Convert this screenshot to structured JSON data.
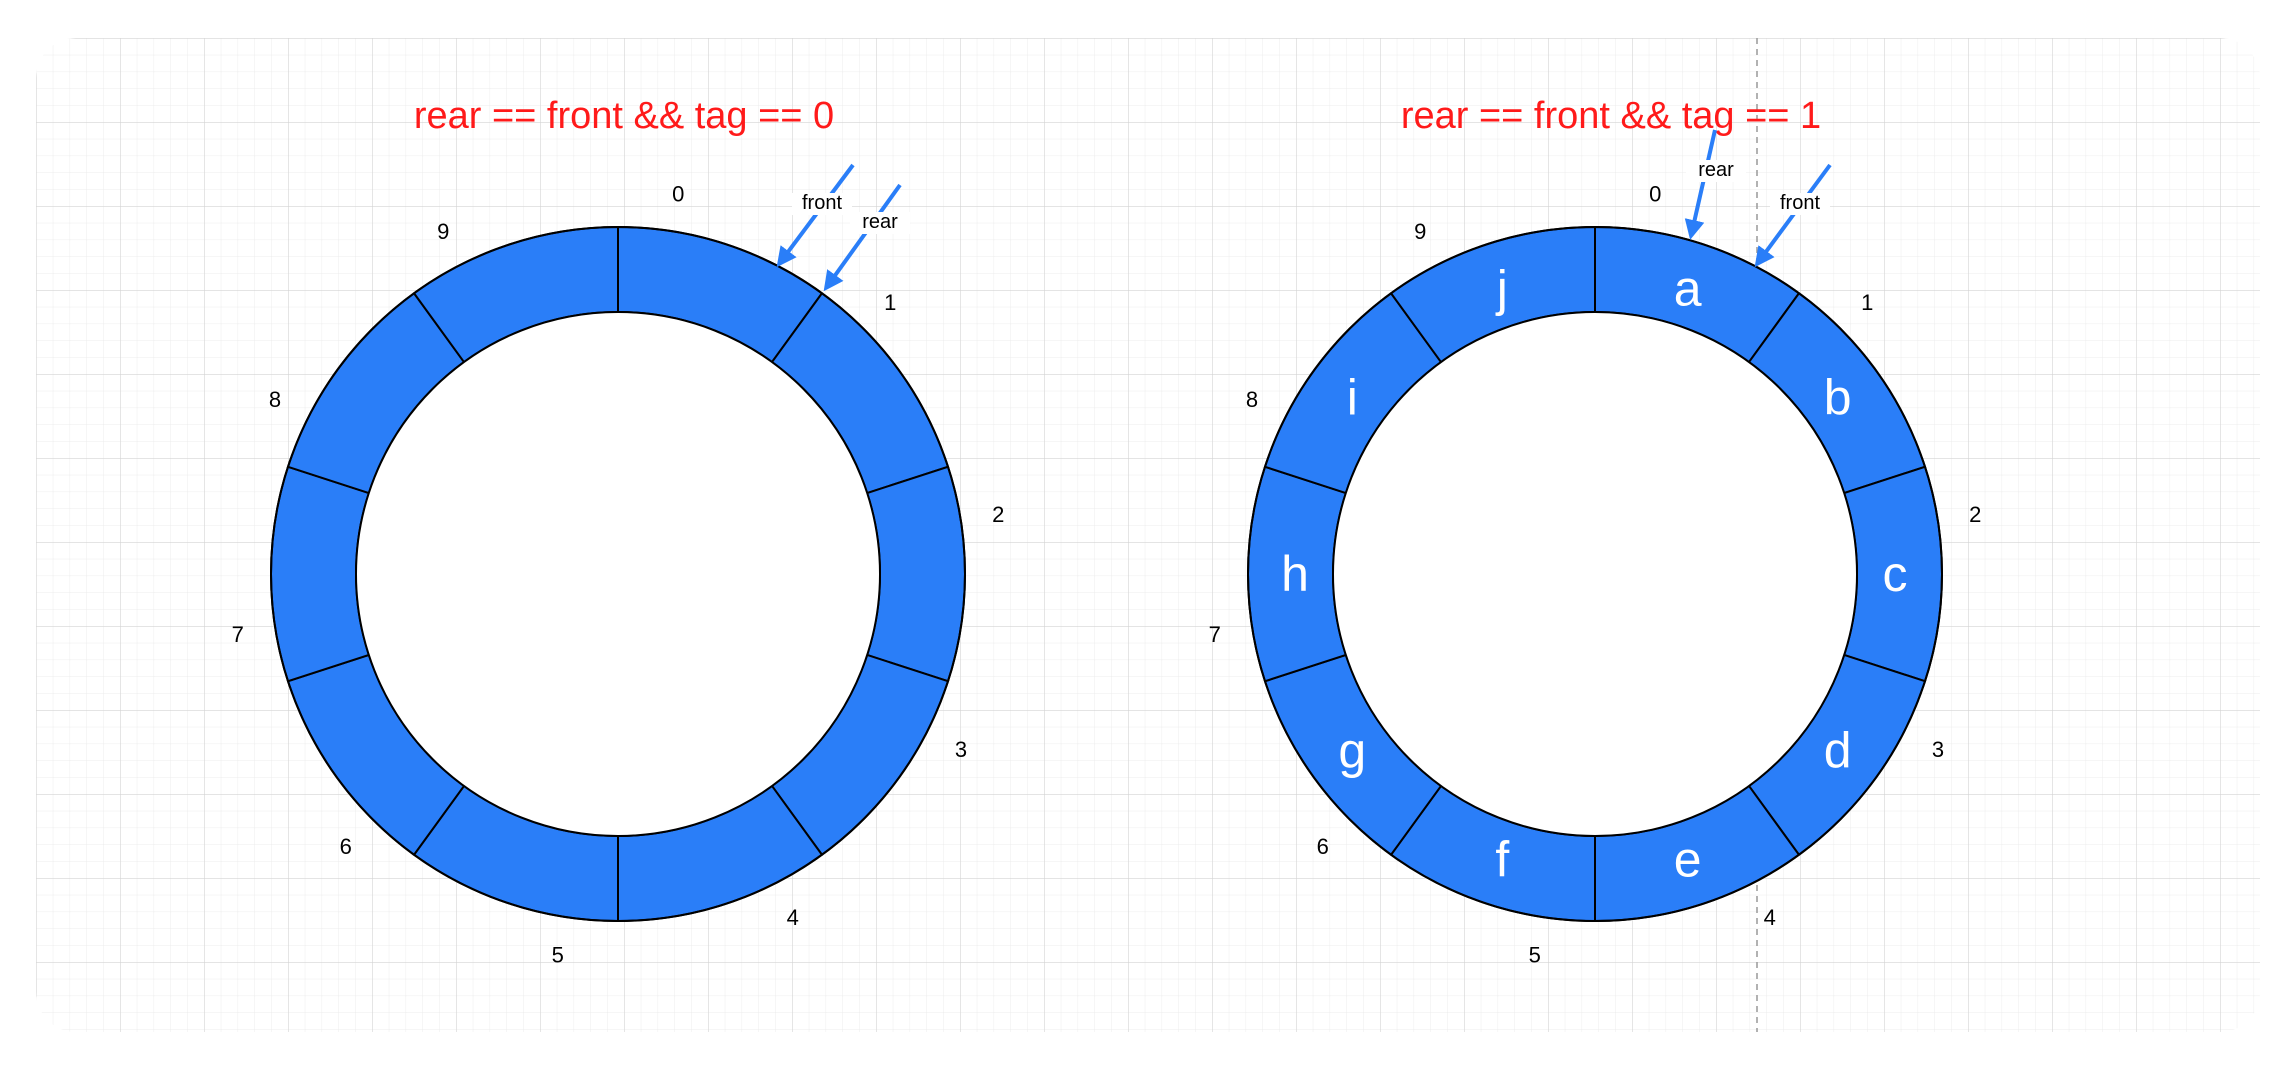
{
  "colors": {
    "segment_fill": "#2a7ef8",
    "segment_stroke": "#000000",
    "pointer": "#2a7ef8",
    "title": "#ff1a1a",
    "grid": "#d9d9d9"
  },
  "queues": [
    {
      "title": "rear == front && tag == 0",
      "indices": [
        "0",
        "1",
        "2",
        "3",
        "4",
        "5",
        "6",
        "7",
        "8",
        "9"
      ],
      "elements": [
        "",
        "",
        "",
        "",
        "",
        "",
        "",
        "",
        "",
        ""
      ],
      "pointers": [
        {
          "label": "front",
          "slot": 0
        },
        {
          "label": "rear",
          "slot": 0
        }
      ]
    },
    {
      "title": "rear == front && tag == 1",
      "indices": [
        "0",
        "1",
        "2",
        "3",
        "4",
        "5",
        "6",
        "7",
        "8",
        "9"
      ],
      "elements": [
        "a",
        "b",
        "c",
        "d",
        "e",
        "f",
        "g",
        "h",
        "i",
        "j"
      ],
      "pointers": [
        {
          "label": "rear",
          "slot": 0
        },
        {
          "label": "front",
          "slot": 0
        }
      ]
    }
  ]
}
